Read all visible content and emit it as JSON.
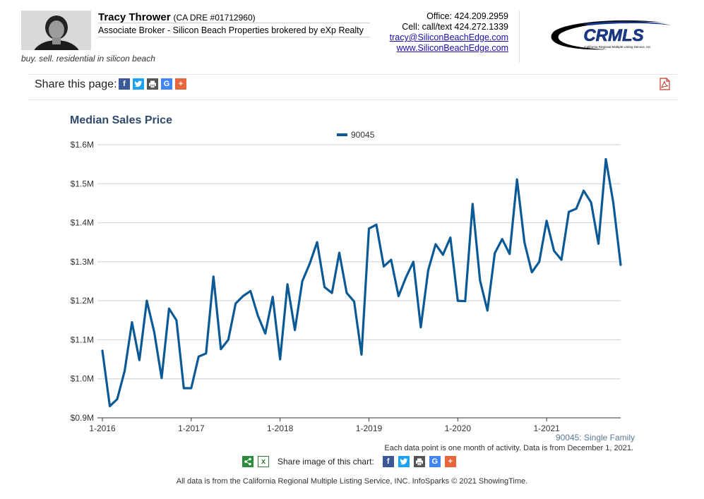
{
  "agent": {
    "name": "Tracy Thrower",
    "dre": "(CA DRE #01712960)",
    "title": "Associate Broker - Silicon Beach Properties brokered by eXp Realty",
    "tagline": "buy. sell. residential in silicon beach",
    "office": "Office: 424.209.2959",
    "cell": "Cell: call/text 424.272.1339",
    "email": "tracy@SiliconBeachEdge.com",
    "website": "www.SiliconBeachEdge.com"
  },
  "logo": {
    "text": "CRMLS",
    "subtext": "California Regional Multiple Listing Service, Inc."
  },
  "share": {
    "label": "Share this page:",
    "image_label": "Share image of this chart:"
  },
  "colors": {
    "series": "#0b5a96",
    "title": "#2f4a6d",
    "facebook": "#3b5998",
    "twitter": "#1da1f2",
    "print": "#555555",
    "google": "#4285f4",
    "plus": "#e8663d"
  },
  "icons": [
    "facebook-icon",
    "twitter-icon",
    "print-icon",
    "google-icon",
    "plus-icon",
    "pdf-icon",
    "share-icon",
    "excel-icon"
  ],
  "chart_data": {
    "type": "line",
    "title": "Median Sales Price",
    "legend": "top-center",
    "grid": true,
    "y_tick_labels": [
      "$0.9M",
      "$1.0M",
      "$1.1M",
      "$1.2M",
      "$1.3M",
      "$1.4M",
      "$1.5M",
      "$1.6M"
    ],
    "y_ticks": [
      0.9,
      1.0,
      1.1,
      1.2,
      1.3,
      1.4,
      1.5,
      1.6
    ],
    "ylim": [
      0.9,
      1.6
    ],
    "x_tick_labels": [
      "1-2016",
      "1-2017",
      "1-2018",
      "1-2019",
      "1-2020",
      "1-2021"
    ],
    "x_start": "1-2016",
    "x_end": "12-2021",
    "series": [
      {
        "name": "90045",
        "values": [
          1.072,
          0.93,
          0.948,
          1.02,
          1.145,
          1.048,
          1.2,
          1.12,
          1.002,
          1.18,
          1.15,
          0.976,
          0.976,
          1.057,
          1.065,
          1.262,
          1.076,
          1.1,
          1.193,
          1.212,
          1.225,
          1.162,
          1.116,
          1.21,
          1.05,
          1.242,
          1.125,
          1.25,
          1.295,
          1.35,
          1.235,
          1.22,
          1.323,
          1.22,
          1.198,
          1.062,
          1.385,
          1.395,
          1.288,
          1.305,
          1.212,
          1.26,
          1.3,
          1.132,
          1.278,
          1.345,
          1.318,
          1.362,
          1.2,
          1.199,
          1.448,
          1.252,
          1.175,
          1.322,
          1.358,
          1.32,
          1.511,
          1.35,
          1.273,
          1.3,
          1.405,
          1.328,
          1.305,
          1.428,
          1.436,
          1.482,
          1.452,
          1.346,
          1.563,
          1.452,
          1.292
        ]
      }
    ],
    "footnote_series": "90045: Single Family",
    "footnote": "Each data point is one month of activity. Data is from December 1, 2021."
  },
  "footer": {
    "note": "All data is from the California Regional Multiple Listing Service, INC. InfoSparks © 2021 ShowingTime."
  }
}
